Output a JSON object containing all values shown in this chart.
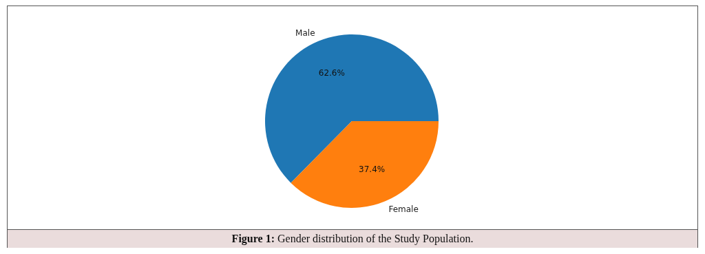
{
  "chart_data": {
    "type": "pie",
    "categories": [
      "Male",
      "Female"
    ],
    "values": [
      62.6,
      37.4
    ],
    "value_labels": [
      "62.6%",
      "37.4%"
    ],
    "colors": [
      "#1f77b4",
      "#ff7f0e"
    ],
    "annotations": [
      "Figure 1: Gender distribution of the Study Population."
    ]
  }
}
